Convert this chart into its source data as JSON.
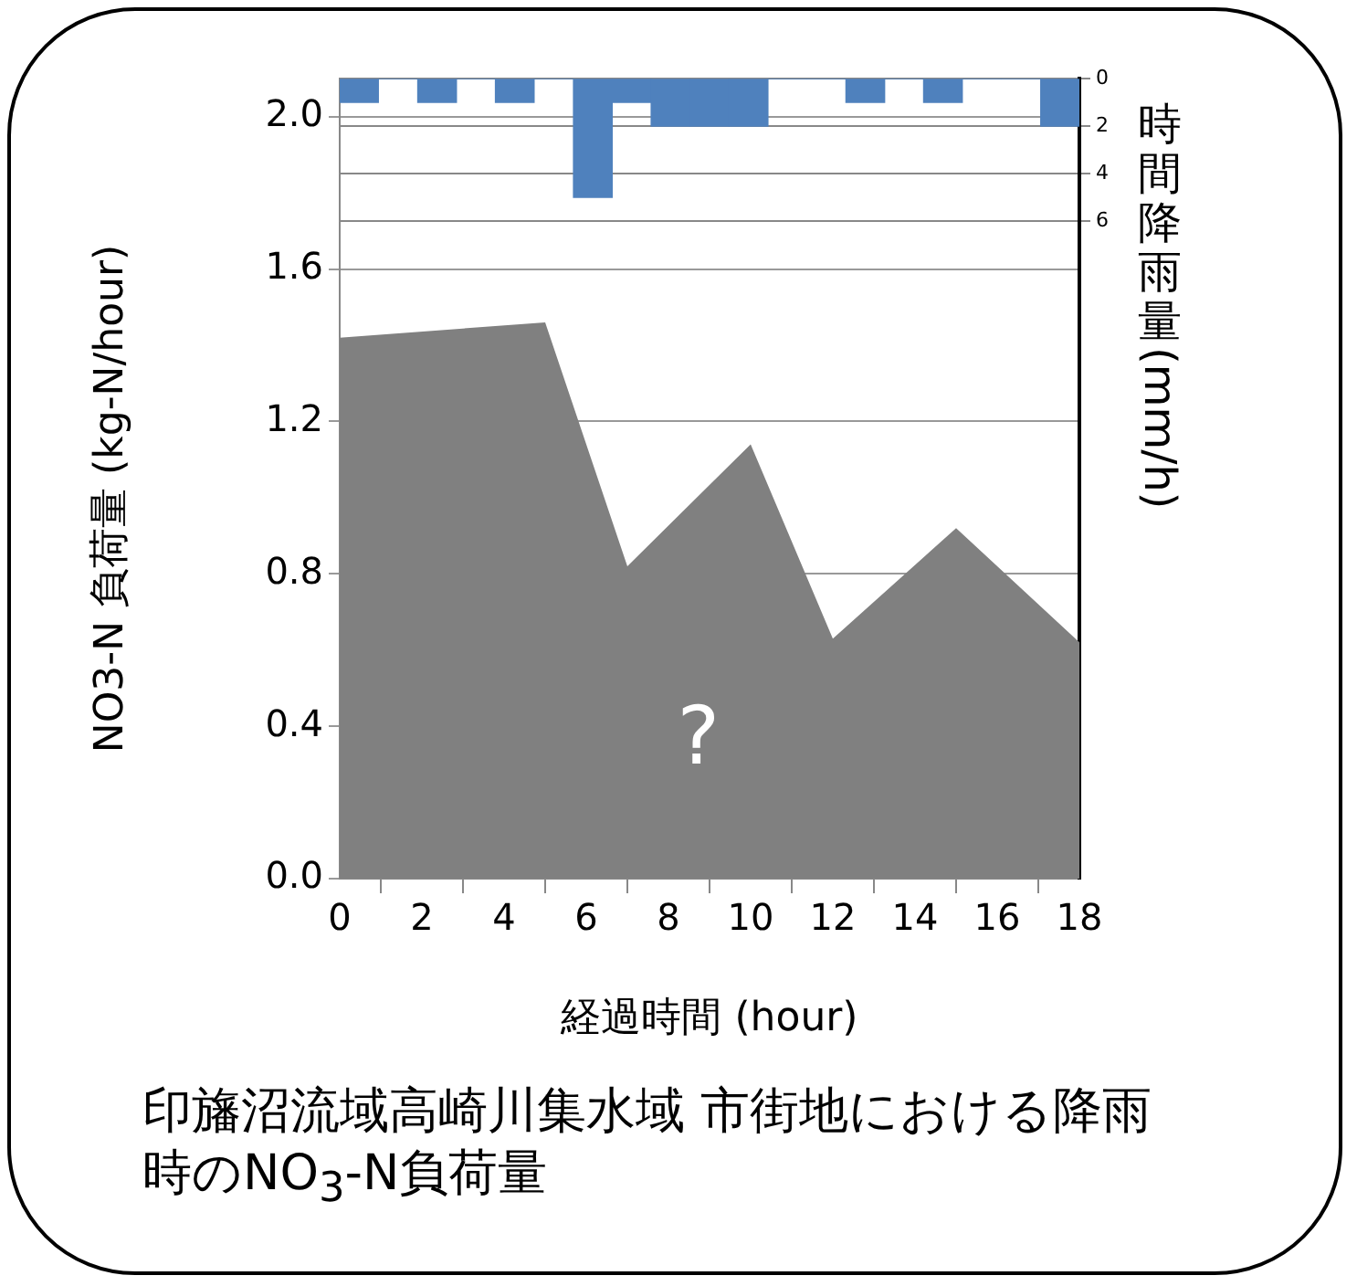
{
  "chart_data": {
    "type": "area",
    "xlabel": "経過時間 (hour)",
    "ylabel": "NO3-N 負荷量 (kg-N/hour)",
    "y2label": "時間降雨量(mm/h)",
    "x": [
      0,
      5,
      7,
      10,
      12,
      15,
      18
    ],
    "series": [
      {
        "color": "#808080",
        "values": [
          1.42,
          1.46,
          0.82,
          1.14,
          0.63,
          0.92,
          0.62
        ]
      },
      {
        "type": "bar",
        "axis": "y2",
        "color": "#4f81bd",
        "x": [
          0.47,
          1.42,
          2.37,
          3.32,
          4.26,
          5.21,
          6.16,
          7.11,
          8.05,
          9.0,
          9.95,
          10.89,
          11.84,
          12.79,
          13.74,
          14.68,
          15.63,
          16.58,
          17.53
        ],
        "values": [
          1,
          0,
          1,
          0,
          1,
          0,
          5,
          1,
          2,
          2,
          2,
          0,
          0,
          1,
          0,
          1,
          0,
          0,
          2
        ]
      }
    ],
    "xlim": [
      0,
      18
    ],
    "xticks": [
      0,
      2,
      4,
      6,
      8,
      10,
      12,
      14,
      16,
      18
    ],
    "ylim": [
      0,
      2.1
    ],
    "yticks": [
      {
        "value": 0,
        "label": "0.0"
      },
      {
        "value": 0.4,
        "label": "0.4"
      },
      {
        "value": 0.8,
        "label": "0.8"
      },
      {
        "value": 1.2,
        "label": "1.2"
      },
      {
        "value": 1.6,
        "label": "1.6"
      },
      {
        "value": 2,
        "label": "2.0"
      }
    ],
    "y2lim": [
      33.7,
      0
    ],
    "y2ticks": [
      0,
      2,
      4,
      6
    ],
    "grid": "y",
    "legend": false,
    "annotations": [
      "?",
      "印旛沼流域高崎川集水域 市街地における降雨時のNO$_{3}$-N負荷量"
    ]
  }
}
